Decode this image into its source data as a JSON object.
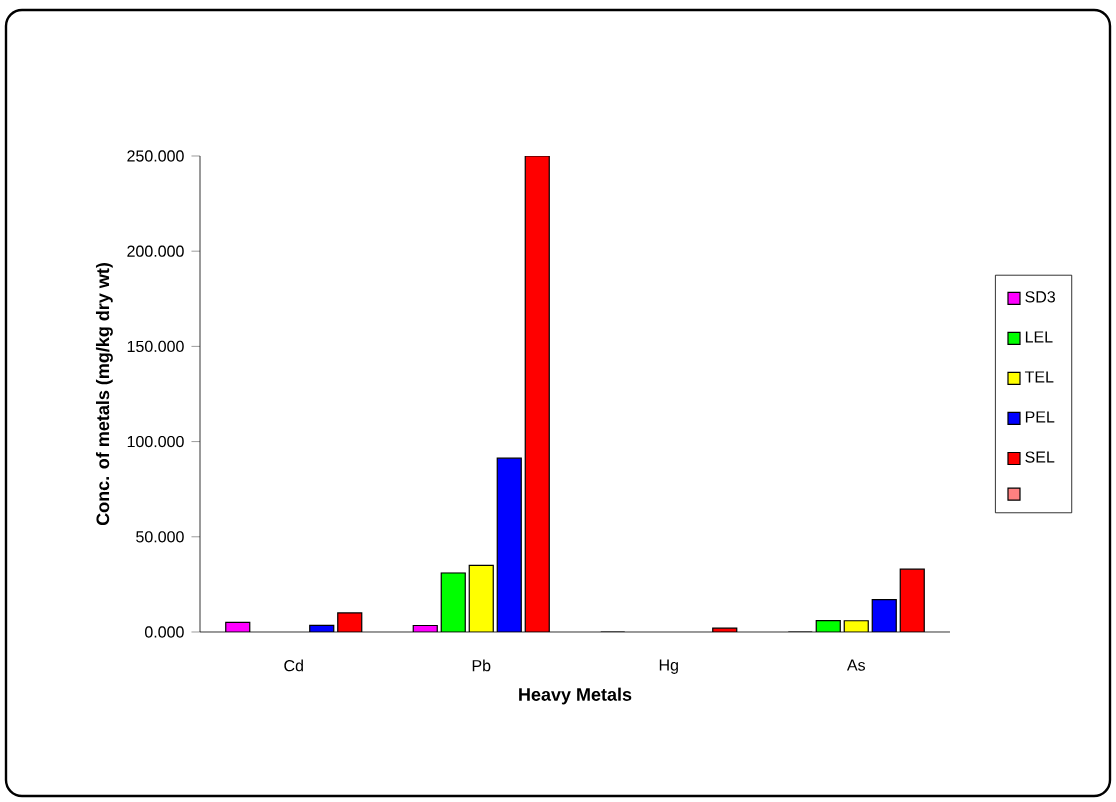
{
  "chart_data": {
    "type": "bar",
    "xlabel": "Heavy Metals",
    "ylabel": "Conc. of metals (mg/kg dry wt)",
    "categories": [
      "Cd",
      "Pb",
      "Hg",
      "As"
    ],
    "series": [
      {
        "name": "SD3",
        "color": "#ff00ff",
        "values": [
          5,
          3.4,
          0,
          0
        ]
      },
      {
        "name": "LEL",
        "color": "#00ff00",
        "values": [
          null,
          31,
          null,
          6
        ]
      },
      {
        "name": "TEL",
        "color": "#ffff00",
        "values": [
          null,
          35,
          null,
          5.9
        ]
      },
      {
        "name": "PEL",
        "color": "#0000ff",
        "values": [
          3.5,
          91.3,
          null,
          17
        ]
      },
      {
        "name": "SEL",
        "color": "#ff0000",
        "values": [
          10,
          250,
          2,
          33
        ]
      },
      {
        "color": "#ff8080",
        "values": [
          null,
          null,
          null,
          null
        ]
      }
    ],
    "ylim": [
      0,
      250
    ],
    "yticks": [
      {
        "value": 0,
        "label": "0.000"
      },
      {
        "value": 50,
        "label": "50.000"
      },
      {
        "value": 100,
        "label": "100.000"
      },
      {
        "value": 150,
        "label": "150.000"
      },
      {
        "value": 200,
        "label": "200.000"
      },
      {
        "value": 250,
        "label": "250.000"
      }
    ],
    "grid": false,
    "legend": "right"
  }
}
